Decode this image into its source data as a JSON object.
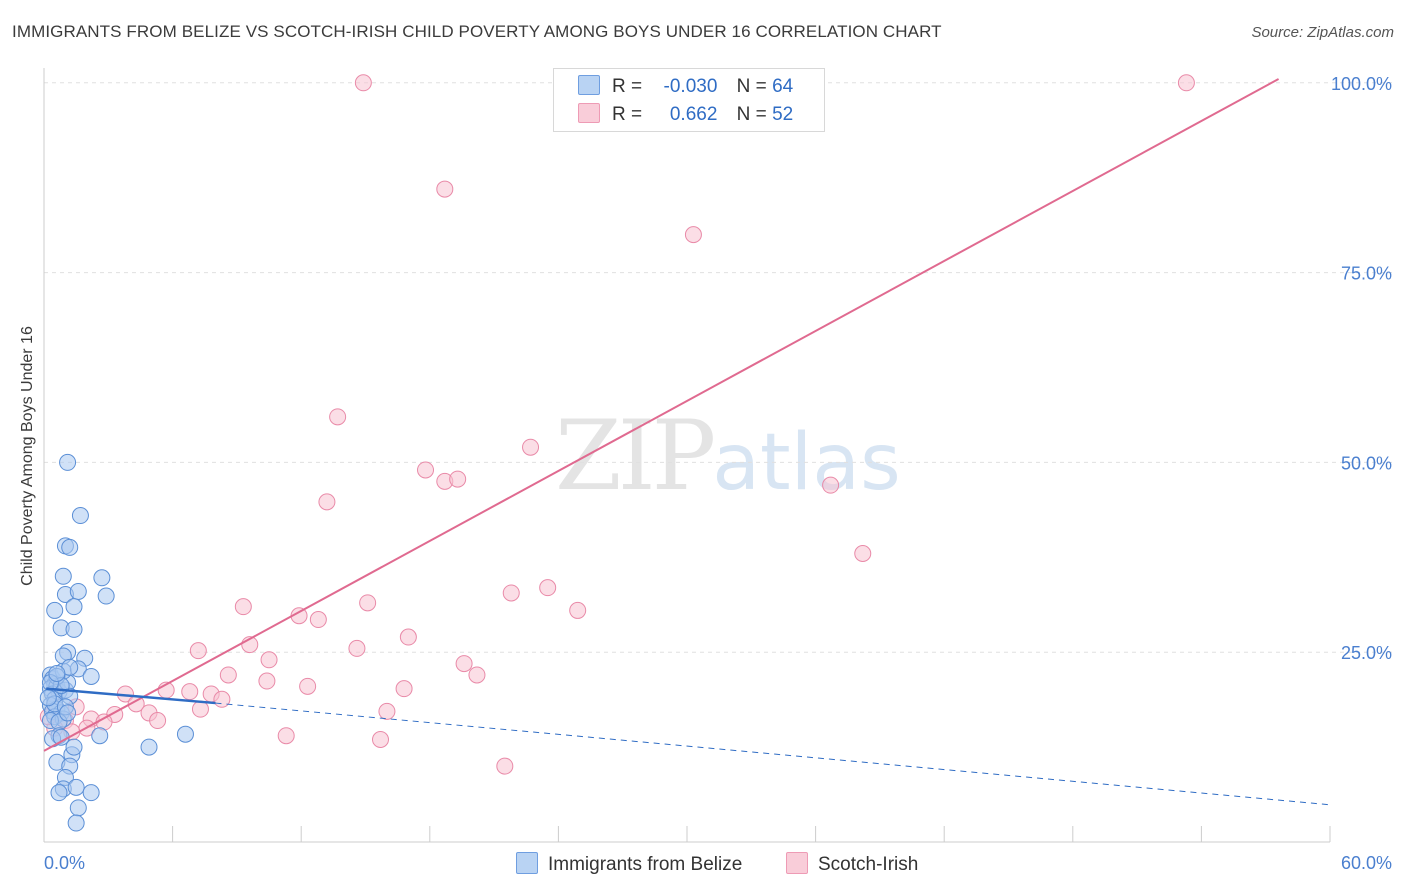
{
  "title": "IMMIGRANTS FROM BELIZE VS SCOTCH-IRISH CHILD POVERTY AMONG BOYS UNDER 16 CORRELATION CHART",
  "source": "Source: ZipAtlas.com",
  "watermark": {
    "zip": "ZIP",
    "atlas": "atlas"
  },
  "legend": {
    "r_label": "R =",
    "n_label": "N =",
    "rows": [
      {
        "name": "Immigrants from Belize",
        "r": "-0.030",
        "n": "64"
      },
      {
        "name": "Scotch-Irish",
        "r": "0.662",
        "n": "52"
      }
    ]
  },
  "colors": {
    "blue_fill": "#a9c8f0",
    "blue_stroke": "#5b8fd6",
    "blue_line": "#2f6cc4",
    "pink_fill": "#f7c3d2",
    "pink_stroke": "#e98aa8",
    "pink_line": "#e06a90",
    "grid": "#e0e0e0",
    "tick_label": "#4a7fcf"
  },
  "chart_data": {
    "type": "scatter",
    "title": "IMMIGRANTS FROM BELIZE VS SCOTCH-IRISH CHILD POVERTY AMONG BOYS UNDER 16 CORRELATION CHART",
    "xlabel": "",
    "ylabel": "Child Poverty Among Boys Under 16",
    "xlim": [
      0,
      60
    ],
    "ylim": [
      0,
      103
    ],
    "x_tick_labels": [
      "0.0%",
      "60.0%"
    ],
    "y_ticks": [
      25,
      50,
      75,
      100
    ],
    "y_tick_labels": [
      "25.0%",
      "50.0%",
      "75.0%",
      "100.0%"
    ],
    "series": [
      {
        "name": "Immigrants from Belize",
        "r": -0.03,
        "n": 64,
        "trend": {
          "x0": 0.1,
          "y0": 20.2,
          "x1": 8.0,
          "y1": 18.3,
          "dash_to_x": 60,
          "dash_to_y": 4.9
        },
        "points": [
          [
            0.3,
            22.0
          ],
          [
            0.4,
            21.5
          ],
          [
            0.5,
            20.8
          ],
          [
            0.3,
            20.2
          ],
          [
            0.6,
            20.5
          ],
          [
            0.7,
            19.8
          ],
          [
            0.4,
            19.5
          ],
          [
            0.5,
            18.8
          ],
          [
            0.3,
            18.0
          ],
          [
            0.6,
            17.5
          ],
          [
            0.4,
            17.2
          ],
          [
            0.8,
            17.0
          ],
          [
            0.5,
            16.5
          ],
          [
            0.9,
            16.2
          ],
          [
            0.3,
            16.0
          ],
          [
            0.7,
            15.8
          ],
          [
            1.0,
            20.0
          ],
          [
            1.1,
            21.0
          ],
          [
            0.9,
            22.5
          ],
          [
            1.2,
            19.2
          ],
          [
            0.6,
            21.8
          ],
          [
            0.8,
            20.6
          ],
          [
            0.5,
            18.2
          ],
          [
            1.0,
            17.8
          ],
          [
            1.1,
            17.0
          ],
          [
            0.7,
            14.0
          ],
          [
            0.4,
            13.6
          ],
          [
            0.8,
            13.8
          ],
          [
            0.6,
            10.5
          ],
          [
            1.3,
            11.5
          ],
          [
            1.2,
            10.0
          ],
          [
            1.0,
            8.5
          ],
          [
            0.9,
            7.0
          ],
          [
            0.7,
            6.5
          ],
          [
            1.5,
            7.2
          ],
          [
            2.2,
            6.5
          ],
          [
            1.6,
            4.5
          ],
          [
            1.5,
            2.5
          ],
          [
            1.4,
            12.5
          ],
          [
            2.6,
            14.0
          ],
          [
            4.9,
            12.5
          ],
          [
            6.6,
            14.2
          ],
          [
            1.1,
            50.0
          ],
          [
            1.7,
            43.0
          ],
          [
            1.0,
            39.0
          ],
          [
            1.2,
            38.8
          ],
          [
            0.9,
            35.0
          ],
          [
            2.7,
            34.8
          ],
          [
            1.0,
            32.6
          ],
          [
            1.6,
            33.0
          ],
          [
            2.9,
            32.4
          ],
          [
            0.5,
            30.5
          ],
          [
            1.4,
            31.0
          ],
          [
            0.8,
            28.2
          ],
          [
            1.4,
            28.0
          ],
          [
            1.1,
            25.0
          ],
          [
            0.9,
            24.5
          ],
          [
            1.9,
            24.2
          ],
          [
            1.6,
            22.8
          ],
          [
            2.2,
            21.8
          ],
          [
            1.2,
            23.0
          ],
          [
            0.3,
            21.0
          ],
          [
            0.6,
            22.2
          ],
          [
            0.2,
            19.0
          ]
        ]
      },
      {
        "name": "Scotch-Irish",
        "r": 0.662,
        "n": 52,
        "trend": {
          "x0": 0.0,
          "y0": 12.0,
          "x1": 57.6,
          "y1": 100.5
        },
        "points": [
          [
            14.9,
            100.0
          ],
          [
            53.3,
            100.0
          ],
          [
            18.7,
            86.0
          ],
          [
            30.3,
            80.0
          ],
          [
            13.7,
            56.0
          ],
          [
            22.7,
            52.0
          ],
          [
            17.8,
            49.0
          ],
          [
            18.7,
            47.5
          ],
          [
            19.3,
            47.8
          ],
          [
            36.7,
            47.0
          ],
          [
            13.2,
            44.8
          ],
          [
            38.2,
            38.0
          ],
          [
            23.5,
            33.5
          ],
          [
            21.8,
            32.8
          ],
          [
            15.1,
            31.5
          ],
          [
            9.3,
            31.0
          ],
          [
            24.9,
            30.5
          ],
          [
            11.9,
            29.8
          ],
          [
            12.8,
            29.3
          ],
          [
            17.0,
            27.0
          ],
          [
            9.6,
            26.0
          ],
          [
            14.6,
            25.5
          ],
          [
            7.2,
            25.2
          ],
          [
            10.5,
            24.0
          ],
          [
            19.6,
            23.5
          ],
          [
            8.6,
            22.0
          ],
          [
            20.2,
            22.0
          ],
          [
            10.4,
            21.2
          ],
          [
            12.3,
            20.5
          ],
          [
            16.8,
            20.2
          ],
          [
            5.7,
            20.0
          ],
          [
            6.8,
            19.8
          ],
          [
            7.8,
            19.5
          ],
          [
            3.8,
            19.5
          ],
          [
            8.3,
            18.8
          ],
          [
            4.3,
            18.2
          ],
          [
            7.3,
            17.5
          ],
          [
            16.0,
            17.2
          ],
          [
            4.9,
            17.0
          ],
          [
            3.3,
            16.8
          ],
          [
            5.3,
            16.0
          ],
          [
            2.2,
            16.2
          ],
          [
            2.8,
            15.8
          ],
          [
            1.0,
            16.0
          ],
          [
            2.0,
            15.0
          ],
          [
            1.3,
            14.5
          ],
          [
            0.5,
            15.0
          ],
          [
            0.2,
            16.5
          ],
          [
            11.3,
            14.0
          ],
          [
            15.7,
            13.5
          ],
          [
            21.5,
            10.0
          ],
          [
            1.5,
            17.8
          ]
        ]
      }
    ]
  }
}
